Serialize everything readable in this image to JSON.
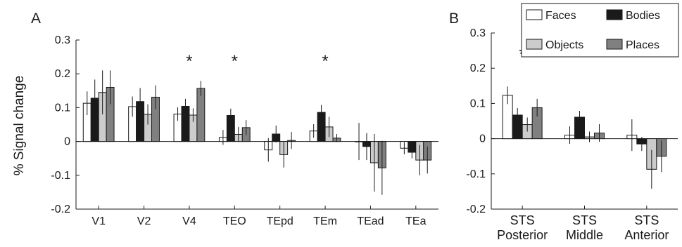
{
  "figure": {
    "ylabel": "% Signal change"
  },
  "legend": {
    "placement": "top-right of panel B",
    "entries": [
      {
        "label": "Faces",
        "color": "#ffffff"
      },
      {
        "label": "Bodies",
        "color": "#1a1a1a"
      },
      {
        "label": "Objects",
        "color": "#cccccc"
      },
      {
        "label": "Places",
        "color": "#808080"
      }
    ]
  },
  "colors": {
    "faces": "#ffffff",
    "bodies": "#1a1a1a",
    "objects": "#cccccc",
    "places": "#808080",
    "axis": "#1a1a1a"
  },
  "chart_data": [
    {
      "panel": "A",
      "type": "bar",
      "categories": [
        "V1",
        "V2",
        "V4",
        "TEO",
        "TEpd",
        "TEm",
        "TEad",
        "TEa"
      ],
      "ylim": [
        -0.2,
        0.3
      ],
      "yticks": [
        "-0.2",
        "-0.1",
        "0",
        "0.1",
        "0.2",
        "0.3"
      ],
      "ytick_values": [
        -0.2,
        -0.1,
        0,
        0.1,
        0.2,
        0.3
      ],
      "grid": false,
      "series": [
        {
          "name": "Faces",
          "values": [
            0.113,
            0.103,
            0.081,
            0.012,
            -0.025,
            0.031,
            0.0,
            -0.02
          ],
          "errors": [
            0.035,
            0.03,
            0.02,
            0.022,
            0.035,
            0.02,
            0.055,
            0.018
          ]
        },
        {
          "name": "Bodies",
          "values": [
            0.128,
            0.118,
            0.104,
            0.077,
            0.022,
            0.086,
            -0.015,
            -0.032
          ],
          "errors": [
            0.055,
            0.04,
            0.022,
            0.02,
            0.025,
            0.022,
            0.04,
            0.018
          ]
        },
        {
          "name": "Objects",
          "values": [
            0.145,
            0.08,
            0.078,
            0.021,
            -0.039,
            0.043,
            -0.063,
            -0.055
          ],
          "errors": [
            0.065,
            0.03,
            0.02,
            0.022,
            0.038,
            0.03,
            0.085,
            0.045
          ]
        },
        {
          "name": "Places",
          "values": [
            0.16,
            0.131,
            0.157,
            0.041,
            0.003,
            0.01,
            -0.078,
            -0.055
          ],
          "errors": [
            0.05,
            0.035,
            0.022,
            0.022,
            0.025,
            0.012,
            0.08,
            0.04
          ]
        }
      ],
      "significance_markers": [
        {
          "category": "V4",
          "label": "*"
        },
        {
          "category": "TEO",
          "label": "*"
        },
        {
          "category": "TEm",
          "label": "*"
        }
      ]
    },
    {
      "panel": "B",
      "type": "bar",
      "categories": [
        "STS\nPosterior",
        "STS\nMiddle",
        "STS\nAnterior"
      ],
      "ylim": [
        -0.2,
        0.3
      ],
      "yticks": [
        "-0.2",
        "-0.1",
        "0",
        "0.1",
        "0.2",
        "0.3"
      ],
      "ytick_values": [
        -0.2,
        -0.1,
        0,
        0.1,
        0.2,
        0.3
      ],
      "grid": false,
      "series": [
        {
          "name": "Faces",
          "values": [
            0.123,
            0.01,
            0.01
          ],
          "errors": [
            0.025,
            0.025,
            0.045
          ]
        },
        {
          "name": "Bodies",
          "values": [
            0.067,
            0.061,
            -0.015
          ],
          "errors": [
            0.02,
            0.018,
            0.02
          ]
        },
        {
          "name": "Objects",
          "values": [
            0.04,
            0.005,
            -0.087
          ],
          "errors": [
            0.02,
            0.015,
            0.055
          ]
        },
        {
          "name": "Places",
          "values": [
            0.088,
            0.016,
            -0.05
          ],
          "errors": [
            0.025,
            0.025,
            0.045
          ]
        }
      ],
      "significance_markers": [
        {
          "category": "STS\nPosterior",
          "label": "*"
        },
        {
          "category": "STS\nMiddle",
          "label": "*"
        }
      ]
    }
  ]
}
